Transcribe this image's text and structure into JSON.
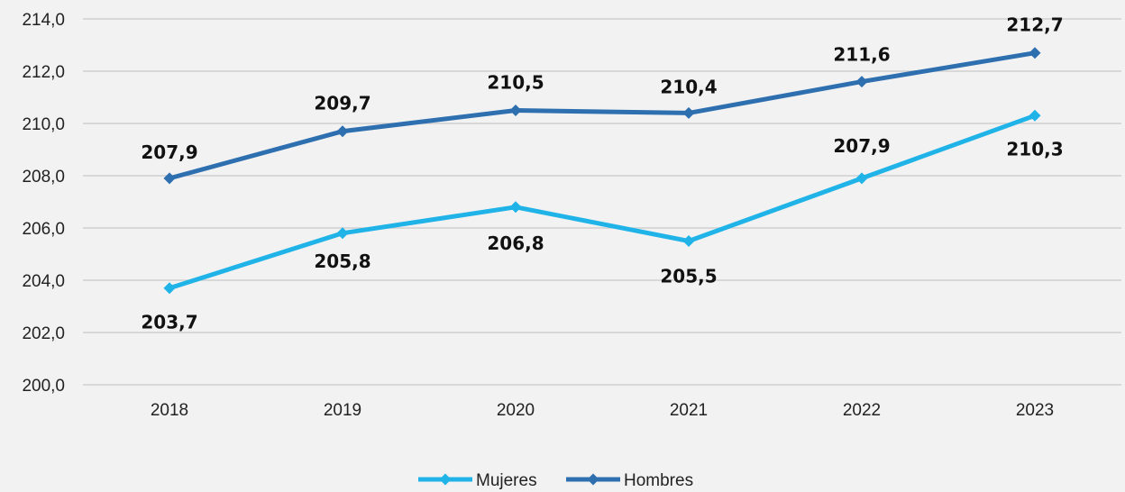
{
  "chart_data": {
    "type": "line",
    "title": "",
    "xlabel": "",
    "ylabel": "",
    "categories": [
      "2018",
      "2019",
      "2020",
      "2021",
      "2022",
      "2023"
    ],
    "ylim": [
      200,
      214
    ],
    "yticks": [
      200,
      202,
      204,
      206,
      208,
      210,
      212,
      214
    ],
    "ytick_labels": [
      "200,0",
      "202,0",
      "204,0",
      "206,0",
      "208,0",
      "210,0",
      "212,0",
      "214,0"
    ],
    "grid": true,
    "legend_position": "bottom-center",
    "series": [
      {
        "name": "Mujeres",
        "color": "#1fb3e8",
        "marker": "diamond",
        "values": [
          203.7,
          205.8,
          206.8,
          205.5,
          207.9,
          210.3
        ],
        "labels": [
          "203,7",
          "205,8",
          "206,8",
          "205,5",
          "207,9",
          "210,3"
        ]
      },
      {
        "name": "Hombres",
        "color": "#2e6fb0",
        "marker": "diamond",
        "values": [
          207.9,
          209.7,
          210.5,
          210.4,
          211.6,
          212.7
        ],
        "labels": [
          "207,9",
          "209,7",
          "210,5",
          "210,4",
          "211,6",
          "212,7"
        ]
      }
    ]
  }
}
